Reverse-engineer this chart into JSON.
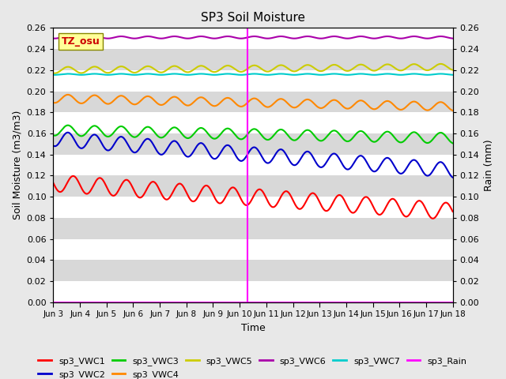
{
  "title": "SP3 Soil Moisture",
  "ylabel_left": "Soil Moisture (m3/m3)",
  "ylabel_right": "Rain (mm)",
  "xlabel": "Time",
  "tz_label": "TZ_osu",
  "ylim": [
    0.0,
    0.26
  ],
  "yticks": [
    0.0,
    0.02,
    0.04,
    0.06,
    0.08,
    0.1,
    0.12,
    0.14,
    0.16,
    0.18,
    0.2,
    0.22,
    0.24,
    0.26
  ],
  "xstart": 0,
  "xend": 15,
  "vline_x": 7.3,
  "series": [
    {
      "name": "sp3_VWC1",
      "color": "#ff0000",
      "base": 0.113,
      "amp": 0.008,
      "period": 1.0,
      "trend": -0.0018,
      "phase": 0.5
    },
    {
      "name": "sp3_VWC2",
      "color": "#0000cc",
      "base": 0.155,
      "amp": 0.007,
      "period": 1.0,
      "trend": -0.002,
      "phase": 0.3
    },
    {
      "name": "sp3_VWC3",
      "color": "#00cc00",
      "base": 0.163,
      "amp": 0.005,
      "period": 1.0,
      "trend": -0.0005,
      "phase": 0.3
    },
    {
      "name": "sp3_VWC4",
      "color": "#ff8800",
      "base": 0.193,
      "amp": 0.004,
      "period": 1.0,
      "trend": -0.0005,
      "phase": 0.3
    },
    {
      "name": "sp3_VWC5",
      "color": "#cccc00",
      "base": 0.22,
      "amp": 0.003,
      "period": 1.0,
      "trend": 0.0002,
      "phase": 0.3
    },
    {
      "name": "sp3_VWC6",
      "color": "#aa00aa",
      "base": 0.251,
      "amp": 0.001,
      "period": 1.0,
      "trend": 0.0,
      "phase": 0.3
    },
    {
      "name": "sp3_VWC7",
      "color": "#00cccc",
      "base": 0.216,
      "amp": 0.0005,
      "period": 1.0,
      "trend": 0.0,
      "phase": 0.3
    },
    {
      "name": "sp3_Rain",
      "color": "#ff00ff",
      "base": 0.0,
      "amp": 0.0,
      "period": 1.0,
      "trend": 0.0,
      "phase": 0.0
    }
  ],
  "legend_order": [
    "sp3_VWC1",
    "sp3_VWC2",
    "sp3_VWC3",
    "sp3_VWC4",
    "sp3_VWC5",
    "sp3_VWC6",
    "sp3_VWC7",
    "sp3_Rain"
  ],
  "xtick_labels": [
    "Jun 3",
    "Jun 4",
    "Jun 5",
    "Jun 6",
    "Jun 7",
    "Jun 8",
    "Jun 9",
    "Jun 10",
    "Jun 11",
    "Jun 12",
    "Jun 13",
    "Jun 14",
    "Jun 15",
    "Jun 16",
    "Jun 17",
    "Jun 18"
  ],
  "xtick_positions": [
    0,
    1,
    2,
    3,
    4,
    5,
    6,
    7,
    8,
    9,
    10,
    11,
    12,
    13,
    14,
    15
  ],
  "figsize": [
    6.4,
    4.8
  ],
  "dpi": 100,
  "background_color": "#e8e8e8",
  "band_colors": [
    "#ffffff",
    "#d8d8d8"
  ]
}
